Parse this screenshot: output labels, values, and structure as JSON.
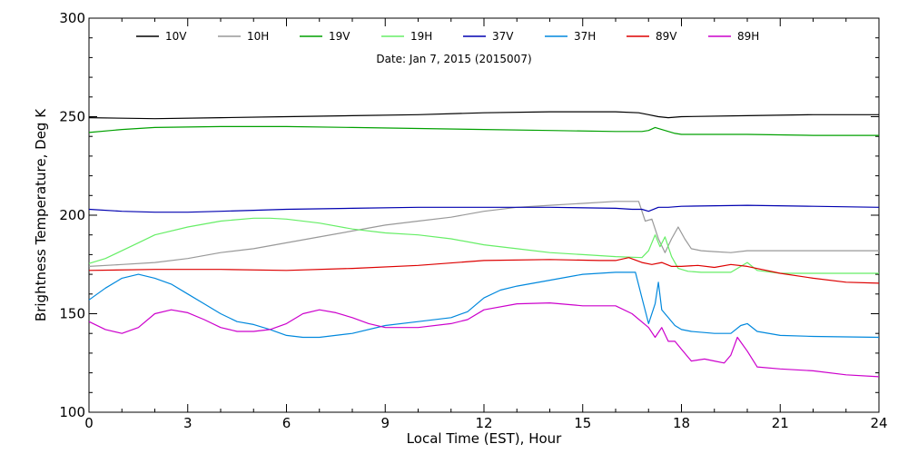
{
  "chart_data": {
    "type": "line",
    "title": "",
    "annotation": "Date: Jan  7, 2015 (2015007)",
    "xlabel": "Local Time (EST), Hour",
    "ylabel": "Brightness Temperature, Deg K",
    "xlim": [
      0,
      24
    ],
    "ylim": [
      100,
      300
    ],
    "xticks": [
      0,
      3,
      6,
      9,
      12,
      15,
      18,
      21,
      24
    ],
    "yticks": [
      100,
      150,
      200,
      250,
      300
    ],
    "grid": false,
    "legend_position": "top",
    "series": [
      {
        "name": "10V",
        "color": "#000000",
        "points": [
          [
            0,
            249.5
          ],
          [
            2,
            249
          ],
          [
            4,
            249.5
          ],
          [
            6,
            250
          ],
          [
            8,
            250.5
          ],
          [
            10,
            251
          ],
          [
            12,
            252
          ],
          [
            14,
            252.5
          ],
          [
            16,
            252.5
          ],
          [
            16.7,
            252
          ],
          [
            17,
            251
          ],
          [
            17.3,
            250
          ],
          [
            17.6,
            249.5
          ],
          [
            18,
            250
          ],
          [
            20,
            250.5
          ],
          [
            22,
            251
          ],
          [
            24,
            251
          ]
        ]
      },
      {
        "name": "10H",
        "color": "#999999",
        "points": [
          [
            0,
            174
          ],
          [
            1,
            175
          ],
          [
            2,
            176
          ],
          [
            3,
            178
          ],
          [
            4,
            181
          ],
          [
            5,
            183
          ],
          [
            6,
            186
          ],
          [
            7,
            189
          ],
          [
            8,
            192
          ],
          [
            9,
            195
          ],
          [
            10,
            197
          ],
          [
            11,
            199
          ],
          [
            12,
            202
          ],
          [
            13,
            204
          ],
          [
            14,
            205
          ],
          [
            15,
            206
          ],
          [
            16,
            207
          ],
          [
            16.7,
            207
          ],
          [
            16.9,
            197
          ],
          [
            17.1,
            198
          ],
          [
            17.3,
            188
          ],
          [
            17.5,
            181
          ],
          [
            17.7,
            188
          ],
          [
            17.9,
            194
          ],
          [
            18.1,
            188
          ],
          [
            18.3,
            183
          ],
          [
            18.6,
            182
          ],
          [
            19,
            181.5
          ],
          [
            19.5,
            181
          ],
          [
            20,
            182
          ],
          [
            21,
            182
          ],
          [
            22,
            182
          ],
          [
            24,
            182
          ]
        ]
      },
      {
        "name": "19V",
        "color": "#00a000",
        "points": [
          [
            0,
            242
          ],
          [
            1,
            243.5
          ],
          [
            2,
            244.5
          ],
          [
            4,
            245
          ],
          [
            6,
            245
          ],
          [
            8,
            244.5
          ],
          [
            10,
            244
          ],
          [
            12,
            243.5
          ],
          [
            14,
            243
          ],
          [
            16,
            242.5
          ],
          [
            16.8,
            242.5
          ],
          [
            17,
            243
          ],
          [
            17.2,
            244.5
          ],
          [
            17.5,
            243
          ],
          [
            17.8,
            241.5
          ],
          [
            18,
            241
          ],
          [
            20,
            241
          ],
          [
            22,
            240.5
          ],
          [
            24,
            240.5
          ]
        ]
      },
      {
        "name": "19H",
        "color": "#66ee66",
        "points": [
          [
            0,
            175.5
          ],
          [
            0.5,
            178
          ],
          [
            1,
            182
          ],
          [
            1.5,
            186
          ],
          [
            2,
            190
          ],
          [
            3,
            194
          ],
          [
            4,
            197
          ],
          [
            5,
            198.5
          ],
          [
            5.5,
            198.5
          ],
          [
            6,
            198
          ],
          [
            7,
            196
          ],
          [
            8,
            193
          ],
          [
            9,
            191
          ],
          [
            10,
            190
          ],
          [
            11,
            188
          ],
          [
            12,
            185
          ],
          [
            13,
            183
          ],
          [
            14,
            181
          ],
          [
            15,
            180
          ],
          [
            16,
            179
          ],
          [
            16.8,
            178.5
          ],
          [
            17,
            182
          ],
          [
            17.2,
            190
          ],
          [
            17.35,
            184
          ],
          [
            17.5,
            189
          ],
          [
            17.7,
            179
          ],
          [
            17.9,
            173
          ],
          [
            18.2,
            171.5
          ],
          [
            18.6,
            171
          ],
          [
            19,
            171
          ],
          [
            19.5,
            171
          ],
          [
            20,
            176
          ],
          [
            20.3,
            172
          ],
          [
            21,
            170.5
          ],
          [
            22,
            170.5
          ],
          [
            24,
            170.5
          ]
        ]
      },
      {
        "name": "37V",
        "color": "#0000b0",
        "points": [
          [
            0,
            203
          ],
          [
            1,
            202
          ],
          [
            2,
            201.5
          ],
          [
            3,
            201.5
          ],
          [
            4,
            202
          ],
          [
            5,
            202.5
          ],
          [
            6,
            203
          ],
          [
            8,
            203.5
          ],
          [
            10,
            204
          ],
          [
            12,
            204
          ],
          [
            14,
            204
          ],
          [
            16,
            203.5
          ],
          [
            16.5,
            203
          ],
          [
            16.8,
            203
          ],
          [
            17,
            202
          ],
          [
            17.3,
            204
          ],
          [
            17.6,
            204
          ],
          [
            18,
            204.5
          ],
          [
            20,
            205
          ],
          [
            22,
            204.5
          ],
          [
            24,
            204
          ]
        ]
      },
      {
        "name": "37H",
        "color": "#0088dd",
        "points": [
          [
            0,
            157
          ],
          [
            0.5,
            163
          ],
          [
            1,
            168
          ],
          [
            1.5,
            170
          ],
          [
            2,
            168
          ],
          [
            2.5,
            165
          ],
          [
            3,
            160
          ],
          [
            3.5,
            155
          ],
          [
            4,
            150
          ],
          [
            4.5,
            146
          ],
          [
            5,
            144.5
          ],
          [
            5.5,
            142
          ],
          [
            6,
            139
          ],
          [
            6.5,
            138
          ],
          [
            7,
            138
          ],
          [
            8,
            140
          ],
          [
            9,
            144
          ],
          [
            10,
            146
          ],
          [
            11,
            148
          ],
          [
            11.5,
            151
          ],
          [
            12,
            158
          ],
          [
            12.5,
            162
          ],
          [
            13,
            164
          ],
          [
            14,
            167
          ],
          [
            15,
            170
          ],
          [
            16,
            171
          ],
          [
            16.6,
            171
          ],
          [
            16.8,
            158
          ],
          [
            17,
            145
          ],
          [
            17.2,
            155
          ],
          [
            17.3,
            166
          ],
          [
            17.4,
            152
          ],
          [
            17.6,
            148
          ],
          [
            17.8,
            144
          ],
          [
            18,
            142
          ],
          [
            18.3,
            141
          ],
          [
            19,
            140
          ],
          [
            19.5,
            140
          ],
          [
            19.8,
            144
          ],
          [
            20,
            145
          ],
          [
            20.3,
            141
          ],
          [
            21,
            139
          ],
          [
            22,
            138.5
          ],
          [
            24,
            138
          ]
        ]
      },
      {
        "name": "89V",
        "color": "#dd0000",
        "points": [
          [
            0,
            172
          ],
          [
            2,
            172.5
          ],
          [
            4,
            172.5
          ],
          [
            6,
            172
          ],
          [
            8,
            173
          ],
          [
            10,
            174.5
          ],
          [
            12,
            177
          ],
          [
            14,
            177.5
          ],
          [
            15.5,
            177
          ],
          [
            16,
            177
          ],
          [
            16.4,
            178.5
          ],
          [
            16.8,
            176
          ],
          [
            17.1,
            175
          ],
          [
            17.4,
            176
          ],
          [
            17.7,
            174
          ],
          [
            18,
            174
          ],
          [
            18.5,
            174.5
          ],
          [
            19,
            173.5
          ],
          [
            19.5,
            175
          ],
          [
            20,
            174
          ],
          [
            21,
            170.5
          ],
          [
            22,
            168
          ],
          [
            23,
            166
          ],
          [
            24,
            165.5
          ]
        ]
      },
      {
        "name": "89H",
        "color": "#cc00cc",
        "points": [
          [
            0,
            146
          ],
          [
            0.5,
            142
          ],
          [
            1,
            140
          ],
          [
            1.5,
            143
          ],
          [
            2,
            150
          ],
          [
            2.5,
            152
          ],
          [
            3,
            150.5
          ],
          [
            3.5,
            147
          ],
          [
            4,
            143
          ],
          [
            4.5,
            141
          ],
          [
            5,
            141
          ],
          [
            5.5,
            142
          ],
          [
            6,
            145
          ],
          [
            6.5,
            150
          ],
          [
            7,
            152
          ],
          [
            7.5,
            150.5
          ],
          [
            8,
            148
          ],
          [
            8.5,
            145
          ],
          [
            9,
            143
          ],
          [
            10,
            143
          ],
          [
            11,
            145
          ],
          [
            11.5,
            147
          ],
          [
            12,
            152
          ],
          [
            13,
            155
          ],
          [
            14,
            155.5
          ],
          [
            15,
            154
          ],
          [
            16,
            154
          ],
          [
            16.5,
            150
          ],
          [
            17,
            143
          ],
          [
            17.2,
            138
          ],
          [
            17.4,
            143
          ],
          [
            17.6,
            136
          ],
          [
            17.8,
            136
          ],
          [
            18,
            132
          ],
          [
            18.3,
            126
          ],
          [
            18.7,
            127
          ],
          [
            19,
            126
          ],
          [
            19.3,
            125
          ],
          [
            19.5,
            129
          ],
          [
            19.7,
            138
          ],
          [
            20,
            131
          ],
          [
            20.3,
            123
          ],
          [
            21,
            122
          ],
          [
            22,
            121
          ],
          [
            23,
            119
          ],
          [
            24,
            118
          ]
        ]
      }
    ]
  }
}
